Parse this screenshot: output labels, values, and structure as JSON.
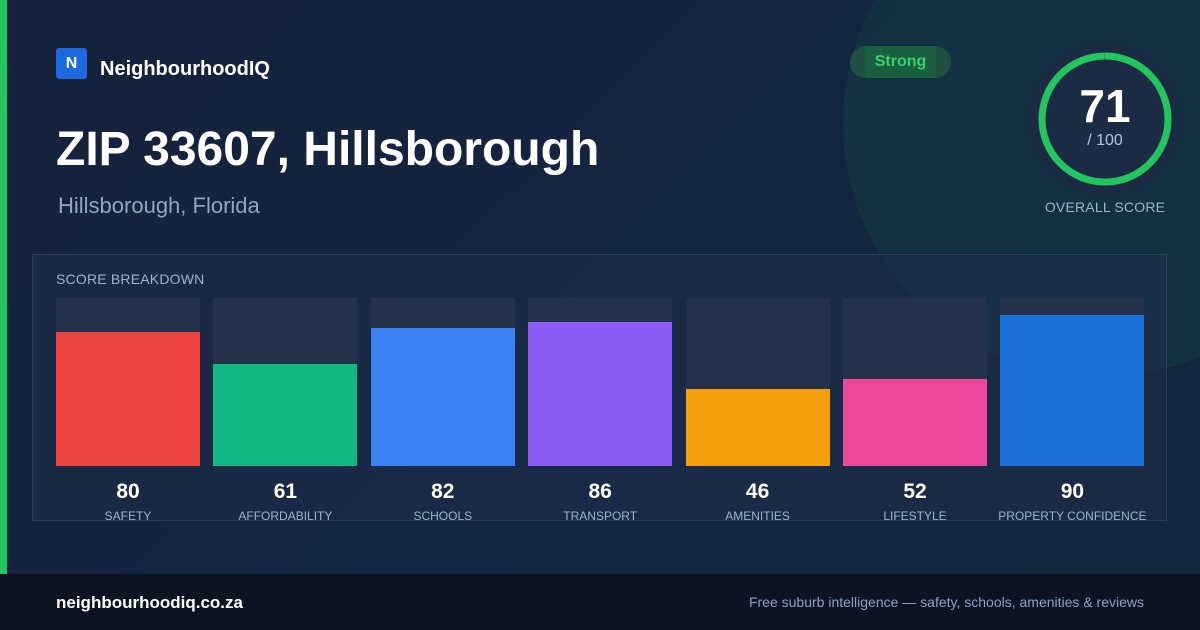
{
  "brand": {
    "logo_letter": "N",
    "name": "NeighbourhoodIQ"
  },
  "header": {
    "title": "ZIP 33607, Hillsborough",
    "subtitle": "Hillsborough, Florida"
  },
  "badge": {
    "label": "Strong",
    "color": "#35d16c"
  },
  "overall_score": {
    "value": 71,
    "value_text": "71",
    "max_text": "/ 100",
    "max": 100,
    "label": "OVERALL SCORE",
    "ring_color": "#22c55e"
  },
  "breakdown": {
    "heading": "SCORE BREAKDOWN"
  },
  "chart_data": {
    "type": "bar",
    "title": "SCORE BREAKDOWN",
    "categories": [
      "SAFETY",
      "AFFORDABILITY",
      "SCHOOLS",
      "TRANSPORT",
      "AMENITIES",
      "LIFESTYLE",
      "PROPERTY CONFIDENCE"
    ],
    "values": [
      80,
      61,
      82,
      86,
      46,
      52,
      90
    ],
    "value_labels": [
      "80",
      "61",
      "82",
      "86",
      "46",
      "52",
      "90"
    ],
    "colors": [
      "#ef4444",
      "#10b981",
      "#3b82f6",
      "#8b5cf6",
      "#f59e0b",
      "#ec4899",
      "#1d6fd8"
    ],
    "ylim": [
      0,
      100
    ],
    "grid": false
  },
  "footer": {
    "url": "neighbourhoodiq.co.za",
    "tagline": "Free suburb intelligence — safety, schools, amenities & reviews"
  }
}
